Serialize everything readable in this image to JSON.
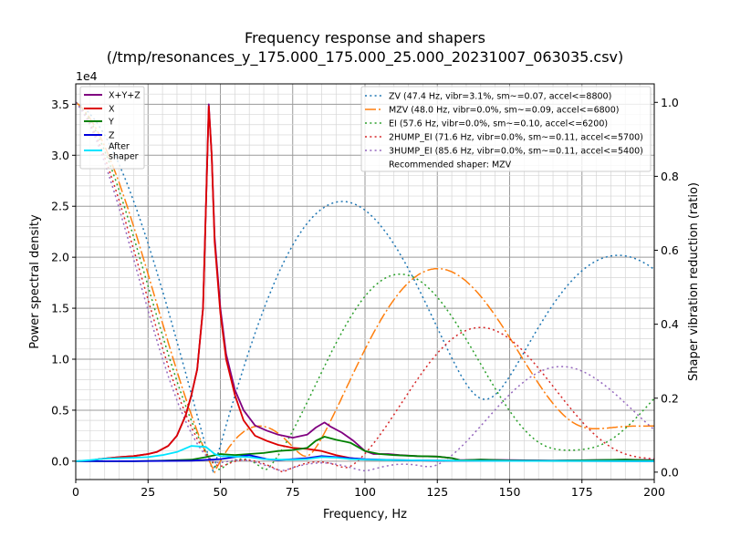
{
  "chart_data": {
    "type": "line",
    "title_line1": "Frequency response and shapers",
    "title_line2": "(/tmp/resonances_y_175.000_175.000_25.000_20231007_063035.csv)",
    "xlabel": "Frequency, Hz",
    "ylabel": "Power spectral density",
    "y2label": "Shaper vibration reduction (ratio)",
    "y_offset_label": "1e4",
    "xlim": [
      0,
      200
    ],
    "ylim": [
      -1800,
      37000
    ],
    "y2lim": [
      -0.02,
      1.05
    ],
    "x_ticks": [
      0,
      25,
      50,
      75,
      100,
      125,
      150,
      175,
      200
    ],
    "x_tick_labels": [
      "0",
      "25",
      "50",
      "75",
      "100",
      "125",
      "150",
      "175",
      "200"
    ],
    "y_ticks": [
      0,
      5000,
      10000,
      15000,
      20000,
      25000,
      30000,
      35000
    ],
    "y_tick_labels": [
      "0.0",
      "0.5",
      "1.0",
      "1.5",
      "2.0",
      "2.5",
      "3.0",
      "3.5"
    ],
    "y2_ticks": [
      0,
      0.2,
      0.4,
      0.6,
      0.8,
      1.0
    ],
    "y2_tick_labels": [
      "0.0",
      "0.2",
      "0.4",
      "0.6",
      "0.8",
      "1.0"
    ],
    "grid": true,
    "psd_series": [
      {
        "name": "X+Y+Z",
        "color": "#800080",
        "points": [
          [
            0,
            0
          ],
          [
            5,
            50
          ],
          [
            8,
            200
          ],
          [
            15,
            400
          ],
          [
            20,
            500
          ],
          [
            25,
            700
          ],
          [
            28,
            900
          ],
          [
            32,
            1500
          ],
          [
            35,
            2500
          ],
          [
            38,
            4500
          ],
          [
            40,
            6500
          ],
          [
            42,
            9000
          ],
          [
            44,
            15000
          ],
          [
            45,
            25000
          ],
          [
            46,
            35000
          ],
          [
            47,
            30000
          ],
          [
            48,
            22000
          ],
          [
            50,
            15000
          ],
          [
            52,
            10500
          ],
          [
            55,
            7000
          ],
          [
            58,
            5000
          ],
          [
            62,
            3500
          ],
          [
            66,
            3000
          ],
          [
            70,
            2600
          ],
          [
            75,
            2300
          ],
          [
            80,
            2600
          ],
          [
            83,
            3300
          ],
          [
            86,
            3800
          ],
          [
            88,
            3400
          ],
          [
            92,
            2800
          ],
          [
            96,
            2000
          ],
          [
            100,
            1000
          ],
          [
            103,
            700
          ],
          [
            108,
            700
          ],
          [
            112,
            600
          ],
          [
            118,
            500
          ],
          [
            125,
            450
          ],
          [
            130,
            300
          ],
          [
            133,
            100
          ],
          [
            140,
            150
          ],
          [
            150,
            100
          ],
          [
            165,
            50
          ],
          [
            180,
            100
          ],
          [
            190,
            150
          ],
          [
            200,
            100
          ]
        ]
      },
      {
        "name": "X",
        "color": "#dd0000",
        "points": [
          [
            0,
            0
          ],
          [
            5,
            50
          ],
          [
            8,
            200
          ],
          [
            15,
            400
          ],
          [
            20,
            500
          ],
          [
            25,
            700
          ],
          [
            28,
            900
          ],
          [
            32,
            1500
          ],
          [
            35,
            2500
          ],
          [
            38,
            4500
          ],
          [
            40,
            6500
          ],
          [
            42,
            9000
          ],
          [
            44,
            15000
          ],
          [
            45,
            25000
          ],
          [
            46,
            34800
          ],
          [
            47,
            30000
          ],
          [
            48,
            21500
          ],
          [
            50,
            14500
          ],
          [
            52,
            10000
          ],
          [
            55,
            6500
          ],
          [
            58,
            4000
          ],
          [
            62,
            2500
          ],
          [
            66,
            2000
          ],
          [
            70,
            1600
          ],
          [
            75,
            1300
          ],
          [
            80,
            1200
          ],
          [
            85,
            1000
          ],
          [
            90,
            600
          ],
          [
            95,
            300
          ],
          [
            100,
            150
          ],
          [
            110,
            100
          ],
          [
            125,
            50
          ],
          [
            150,
            20
          ],
          [
            200,
            10
          ]
        ]
      },
      {
        "name": "Y",
        "color": "#008000",
        "points": [
          [
            0,
            0
          ],
          [
            10,
            0
          ],
          [
            20,
            0
          ],
          [
            30,
            50
          ],
          [
            40,
            150
          ],
          [
            45,
            400
          ],
          [
            50,
            700
          ],
          [
            55,
            600
          ],
          [
            60,
            700
          ],
          [
            65,
            800
          ],
          [
            70,
            1000
          ],
          [
            75,
            1100
          ],
          [
            80,
            1300
          ],
          [
            83,
            2000
          ],
          [
            86,
            2400
          ],
          [
            90,
            2100
          ],
          [
            95,
            1800
          ],
          [
            100,
            1000
          ],
          [
            105,
            700
          ],
          [
            110,
            600
          ],
          [
            118,
            500
          ],
          [
            125,
            450
          ],
          [
            130,
            300
          ],
          [
            133,
            80
          ],
          [
            140,
            150
          ],
          [
            150,
            80
          ],
          [
            165,
            50
          ],
          [
            180,
            100
          ],
          [
            190,
            150
          ],
          [
            200,
            80
          ]
        ]
      },
      {
        "name": "Z",
        "color": "#0000dd",
        "points": [
          [
            0,
            0
          ],
          [
            20,
            0
          ],
          [
            40,
            50
          ],
          [
            50,
            200
          ],
          [
            55,
            400
          ],
          [
            60,
            600
          ],
          [
            63,
            400
          ],
          [
            66,
            200
          ],
          [
            70,
            100
          ],
          [
            75,
            200
          ],
          [
            80,
            300
          ],
          [
            85,
            500
          ],
          [
            90,
            400
          ],
          [
            95,
            300
          ],
          [
            100,
            200
          ],
          [
            110,
            100
          ],
          [
            125,
            50
          ],
          [
            150,
            30
          ],
          [
            200,
            10
          ]
        ]
      },
      {
        "name": "After\nshaper",
        "color": "#00e5ff",
        "points": [
          [
            0,
            0
          ],
          [
            5,
            100
          ],
          [
            10,
            250
          ],
          [
            20,
            350
          ],
          [
            25,
            400
          ],
          [
            30,
            600
          ],
          [
            35,
            900
          ],
          [
            40,
            1500
          ],
          [
            45,
            1400
          ],
          [
            48,
            700
          ],
          [
            50,
            500
          ],
          [
            55,
            450
          ],
          [
            60,
            400
          ],
          [
            65,
            200
          ],
          [
            70,
            150
          ],
          [
            75,
            150
          ],
          [
            80,
            200
          ],
          [
            85,
            400
          ],
          [
            90,
            350
          ],
          [
            95,
            200
          ],
          [
            100,
            150
          ],
          [
            110,
            100
          ],
          [
            120,
            80
          ],
          [
            130,
            50
          ],
          [
            140,
            30
          ],
          [
            160,
            20
          ],
          [
            200,
            10
          ]
        ]
      }
    ],
    "shapers": [
      {
        "name": "ZV (47.4 Hz, vibr=3.1%, sm~=0.07, accel<=8800)",
        "color": "#1f77b4",
        "dash": "2,3.3",
        "freq": 47.4,
        "type": "ZV"
      },
      {
        "name": "MZV (48.0 Hz, vibr=0.0%, sm~=0.09, accel<=6800)",
        "color": "#ff7f0e",
        "dash": "12,3,2,3",
        "freq": 48.0,
        "type": "MZV"
      },
      {
        "name": "EI (57.6 Hz, vibr=0.0%, sm~=0.10, accel<=6200)",
        "color": "#2ca02c",
        "dash": "2,3.3",
        "freq": 57.6,
        "type": "EI"
      },
      {
        "name": "2HUMP_EI (71.6 Hz, vibr=0.0%, sm~=0.11, accel<=5700)",
        "color": "#d62728",
        "dash": "2,3.3",
        "freq": 71.6,
        "type": "2HUMP_EI"
      },
      {
        "name": "3HUMP_EI (85.6 Hz, vibr=0.0%, sm~=0.11, accel<=5400)",
        "color": "#9467bd",
        "dash": "2,3.3",
        "freq": 85.6,
        "type": "3HUMP_EI"
      }
    ],
    "recommended": "Recommended shaper: MZV",
    "legend_left_placement": "upper-left",
    "legend_right_placement": "upper-right"
  }
}
